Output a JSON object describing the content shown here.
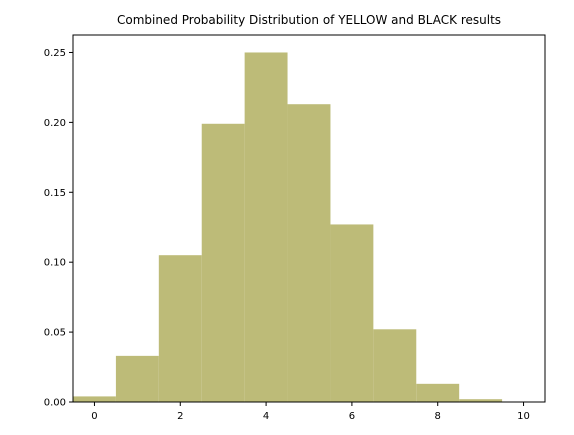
{
  "chart_data": {
    "type": "bar",
    "title": "Combined Probability Distribution of YELLOW and BLACK results",
    "xlabel": "",
    "ylabel": "",
    "x": [
      0,
      1,
      2,
      3,
      4,
      5,
      6,
      7,
      8,
      9,
      10
    ],
    "values": [
      0.004,
      0.033,
      0.105,
      0.199,
      0.25,
      0.213,
      0.127,
      0.052,
      0.013,
      0.002,
      0.0
    ],
    "bar_width": 1,
    "xlim": [
      -0.5,
      10.5
    ],
    "ylim": [
      0,
      0.2625
    ],
    "xticks": [
      0,
      2,
      4,
      6,
      8,
      10
    ],
    "xtick_labels": [
      "0",
      "2",
      "4",
      "6",
      "8",
      "10"
    ],
    "yticks": [
      0,
      0.05,
      0.1,
      0.15,
      0.2,
      0.25
    ],
    "ytick_labels": [
      "0.00",
      "0.05",
      "0.10",
      "0.15",
      "0.20",
      "0.25"
    ],
    "grid": false,
    "legend": "none",
    "color": "#bdbb78"
  }
}
